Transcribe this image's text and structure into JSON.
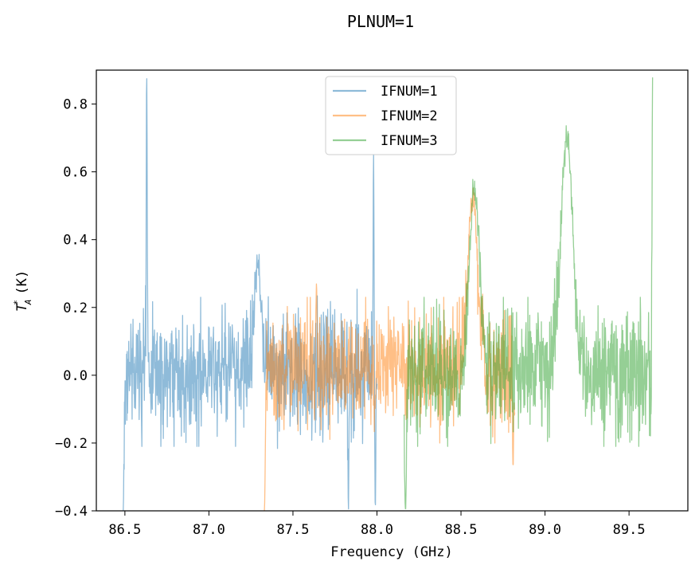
{
  "chart_data": {
    "type": "line",
    "title": "PLNUM=1",
    "xlabel": "Frequency (GHz)",
    "ylabel_main": "T",
    "ylabel_sup": "*",
    "ylabel_sub": "A",
    "ylabel_unit": "(K)",
    "xlim": [
      86.33,
      89.85
    ],
    "ylim": [
      -0.4,
      0.9
    ],
    "xticks": [
      86.5,
      87.0,
      87.5,
      88.0,
      88.5,
      89.0,
      89.5
    ],
    "xtick_labels": [
      "86.5",
      "87.0",
      "87.5",
      "88.0",
      "88.5",
      "89.0",
      "89.5"
    ],
    "yticks": [
      -0.4,
      -0.2,
      0.0,
      0.2,
      0.4,
      0.6,
      0.8
    ],
    "ytick_labels": [
      "−0.4",
      "−0.2",
      "0.0",
      "0.2",
      "0.4",
      "0.6",
      "0.8"
    ],
    "legend_position": "top-center",
    "series": [
      {
        "name": "IFNUM=1",
        "color": "#1f77b4",
        "opacity": 0.5,
        "x_range": [
          86.49,
          87.33
        ],
        "noise_band": [
          -0.15,
          0.17
        ],
        "features": [
          {
            "x": 86.49,
            "y": -0.4,
            "width": 0.004
          },
          {
            "x": 86.63,
            "y": 0.9,
            "width": 0.003
          },
          {
            "x": 87.29,
            "y": 0.33,
            "width": 0.02
          },
          {
            "x": 87.83,
            "y": -0.4,
            "width": 0.003
          },
          {
            "x": 87.98,
            "y": 0.62,
            "width": 0.003
          },
          {
            "x": 87.99,
            "y": -0.4,
            "width": 0.003
          }
        ],
        "x_range_ext": [
          86.49,
          88.0
        ]
      },
      {
        "name": "IFNUM=2",
        "color": "#ff7f0e",
        "opacity": 0.5,
        "x_range": [
          87.33,
          88.82
        ],
        "noise_band": [
          -0.14,
          0.17
        ],
        "features": [
          {
            "x": 87.33,
            "y": -0.4,
            "width": 0.005
          },
          {
            "x": 87.64,
            "y": 0.27,
            "width": 0.004
          },
          {
            "x": 88.57,
            "y": 0.52,
            "width": 0.03
          },
          {
            "x": 88.81,
            "y": -0.27,
            "width": 0.004
          }
        ]
      },
      {
        "name": "IFNUM=3",
        "color": "#2ca02c",
        "opacity": 0.5,
        "x_range": [
          88.16,
          89.64
        ],
        "noise_band": [
          -0.15,
          0.17
        ],
        "features": [
          {
            "x": 88.17,
            "y": -0.4,
            "width": 0.006
          },
          {
            "x": 88.58,
            "y": 0.55,
            "width": 0.03
          },
          {
            "x": 89.13,
            "y": 0.71,
            "width": 0.035
          },
          {
            "x": 89.64,
            "y": 0.9,
            "width": 0.003
          }
        ]
      }
    ]
  }
}
